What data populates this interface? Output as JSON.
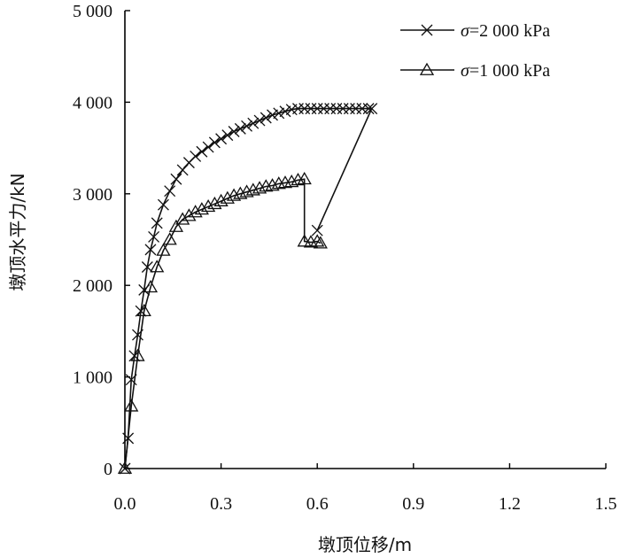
{
  "chart_data": {
    "type": "line",
    "xlabel": "墩顶位移/m",
    "ylabel": "墩顶水平力/kN",
    "xlim": [
      0,
      1.5
    ],
    "ylim": [
      0,
      5000
    ],
    "x_ticks": [
      0.0,
      0.3,
      0.6,
      0.9,
      1.2,
      1.5
    ],
    "x_tick_labels": [
      "0.0",
      "0.3",
      "0.6",
      "0.9",
      "1.2",
      "1.5"
    ],
    "y_ticks": [
      0,
      1000,
      2000,
      3000,
      4000,
      5000
    ],
    "y_tick_labels": [
      "0",
      "1 000",
      "2 000",
      "3 000",
      "4 000",
      "5 000"
    ],
    "grid": false,
    "legend_position": "top-right",
    "series": [
      {
        "name": "σ=2 000 kPa",
        "legend_label_prefix": "σ",
        "legend_label_rest": "=2 000 kPa",
        "marker": "x",
        "x": [
          0.0,
          0.01,
          0.02,
          0.03,
          0.04,
          0.05,
          0.06,
          0.07,
          0.08,
          0.09,
          0.1,
          0.12,
          0.14,
          0.16,
          0.18,
          0.2,
          0.22,
          0.24,
          0.26,
          0.28,
          0.3,
          0.32,
          0.34,
          0.36,
          0.38,
          0.4,
          0.42,
          0.44,
          0.46,
          0.48,
          0.5,
          0.52,
          0.54,
          0.56,
          0.58,
          0.6,
          0.62,
          0.64,
          0.66,
          0.68,
          0.7,
          0.72,
          0.74,
          0.76,
          0.77,
          0.6
        ],
        "y": [
          0,
          330,
          970,
          1230,
          1460,
          1720,
          1950,
          2200,
          2390,
          2530,
          2680,
          2880,
          3030,
          3160,
          3260,
          3340,
          3410,
          3460,
          3510,
          3560,
          3600,
          3640,
          3680,
          3710,
          3740,
          3770,
          3800,
          3830,
          3860,
          3880,
          3900,
          3920,
          3930,
          3930,
          3930,
          3930,
          3930,
          3930,
          3930,
          3930,
          3930,
          3930,
          3930,
          3930,
          3930,
          2600
        ]
      },
      {
        "name": "σ=1 000 kPa",
        "legend_label_prefix": "σ",
        "legend_label_rest": "=1 000 kPa",
        "marker": "triangle",
        "x": [
          0.0,
          0.02,
          0.04,
          0.06,
          0.08,
          0.1,
          0.12,
          0.14,
          0.16,
          0.18,
          0.2,
          0.22,
          0.24,
          0.26,
          0.28,
          0.3,
          0.32,
          0.34,
          0.36,
          0.38,
          0.4,
          0.42,
          0.44,
          0.46,
          0.48,
          0.5,
          0.52,
          0.54,
          0.56,
          0.56,
          0.58,
          0.6,
          0.61
        ],
        "y": [
          0,
          680,
          1230,
          1720,
          1980,
          2200,
          2380,
          2500,
          2640,
          2720,
          2760,
          2800,
          2830,
          2860,
          2890,
          2920,
          2950,
          2980,
          3000,
          3020,
          3040,
          3060,
          3080,
          3090,
          3110,
          3120,
          3130,
          3150,
          3160,
          2480,
          2470,
          2480,
          2460
        ]
      }
    ]
  }
}
